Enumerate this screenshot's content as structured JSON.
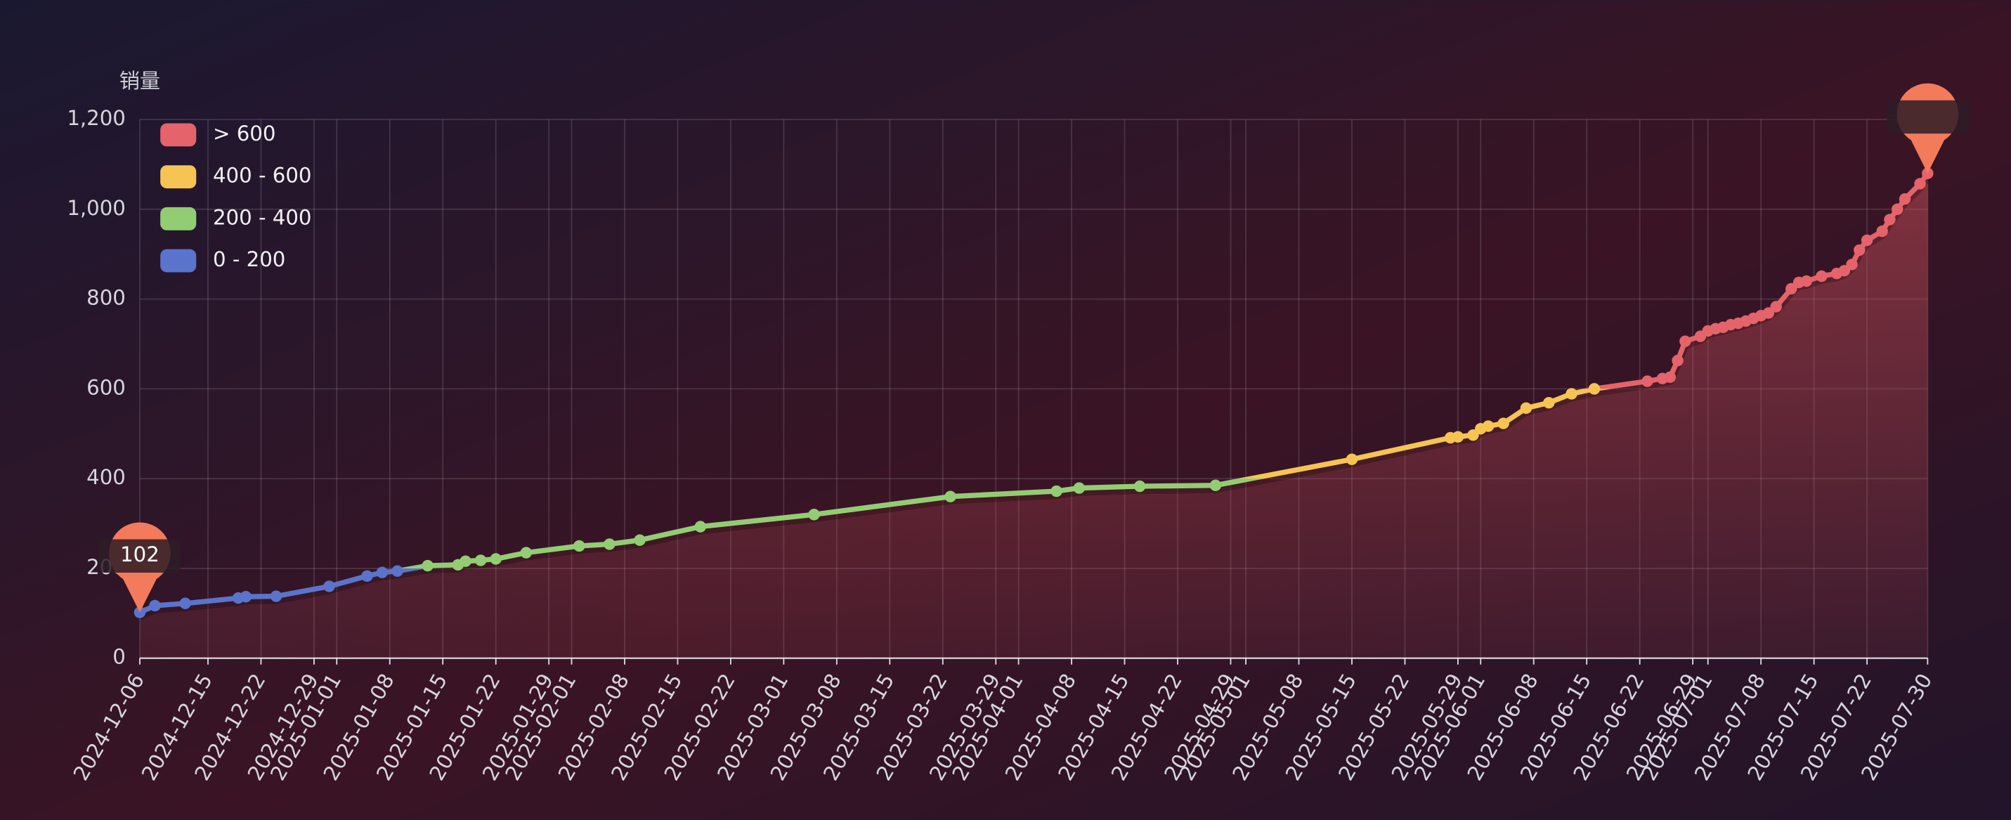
{
  "chart_data": {
    "type": "line",
    "y_name": "销量",
    "x": [
      "2024-12-06",
      "2024-12-08",
      "2024-12-12",
      "2024-12-19",
      "2024-12-20",
      "2024-12-24",
      "2024-12-31",
      "2025-01-05",
      "2025-01-07",
      "2025-01-09",
      "2025-01-13",
      "2025-01-17",
      "2025-01-18",
      "2025-01-20",
      "2025-01-22",
      "2025-01-26",
      "2025-02-02",
      "2025-02-06",
      "2025-02-10",
      "2025-02-18",
      "2025-03-05",
      "2025-03-23",
      "2025-04-06",
      "2025-04-09",
      "2025-04-17",
      "2025-04-27",
      "2025-05-15",
      "2025-05-28",
      "2025-05-29",
      "2025-05-31",
      "2025-06-01",
      "2025-06-02",
      "2025-06-04",
      "2025-06-07",
      "2025-06-10",
      "2025-06-13",
      "2025-06-16",
      "2025-06-23",
      "2025-06-25",
      "2025-06-26",
      "2025-06-27",
      "2025-06-28",
      "2025-06-30",
      "2025-07-01",
      "2025-07-02",
      "2025-07-03",
      "2025-07-04",
      "2025-07-05",
      "2025-07-06",
      "2025-07-07",
      "2025-07-08",
      "2025-07-09",
      "2025-07-10",
      "2025-07-12",
      "2025-07-13",
      "2025-07-14",
      "2025-07-16",
      "2025-07-18",
      "2025-07-19",
      "2025-07-20",
      "2025-07-21",
      "2025-07-22",
      "2025-07-24",
      "2025-07-25",
      "2025-07-26",
      "2025-07-27",
      "2025-07-29",
      "2025-07-30"
    ],
    "values": [
      102,
      117,
      122,
      134,
      137,
      138,
      160,
      183,
      191,
      194,
      206,
      208,
      216,
      218,
      221,
      235,
      250,
      254,
      263,
      293,
      320,
      360,
      372,
      379,
      383,
      385,
      443,
      491,
      493,
      497,
      511,
      517,
      523,
      557,
      569,
      589,
      600,
      617,
      623,
      626,
      663,
      706,
      717,
      729,
      734,
      737,
      743,
      746,
      751,
      757,
      763,
      769,
      783,
      823,
      837,
      840,
      851,
      857,
      863,
      877,
      909,
      931,
      951,
      977,
      1000,
      1023,
      1057,
      1080
    ],
    "pieces": [
      {
        "label": "> 600",
        "min": 600,
        "color": "#e5636a"
      },
      {
        "label": "400 - 600",
        "min": 400,
        "max": 600,
        "color": "#f6c453"
      },
      {
        "label": "200 - 400",
        "min": 200,
        "max": 400,
        "color": "#93cd73"
      },
      {
        "label": "0 - 200",
        "min": 0,
        "max": 200,
        "color": "#5a74cc"
      }
    ],
    "area_color": "#c9505a",
    "pin_color": "#f37b5c",
    "xlim": [
      "2024-12-06",
      "2025-07-30"
    ],
    "xticks": [
      "2024-12-06",
      "2024-12-15",
      "2024-12-22",
      "2024-12-29",
      "2025-01-01",
      "2025-01-08",
      "2025-01-15",
      "2025-01-22",
      "2025-01-29",
      "2025-02-01",
      "2025-02-08",
      "2025-02-15",
      "2025-02-22",
      "2025-03-01",
      "2025-03-08",
      "2025-03-15",
      "2025-03-22",
      "2025-03-29",
      "2025-04-01",
      "2025-04-08",
      "2025-04-15",
      "2025-04-22",
      "2025-04-29",
      "2025-05-01",
      "2025-05-08",
      "2025-05-15",
      "2025-05-22",
      "2025-05-29",
      "2025-06-01",
      "2025-06-08",
      "2025-06-15",
      "2025-06-22",
      "2025-06-29",
      "2025-07-01",
      "2025-07-08",
      "2025-07-15",
      "2025-07-22",
      "2025-07-30"
    ],
    "ylim": [
      0,
      1200
    ],
    "yticks": [
      0,
      200,
      400,
      600,
      800,
      {
        "value": 1000,
        "label": "1,000"
      },
      {
        "value": 1200,
        "label": "1,200"
      }
    ],
    "grid": true
  }
}
